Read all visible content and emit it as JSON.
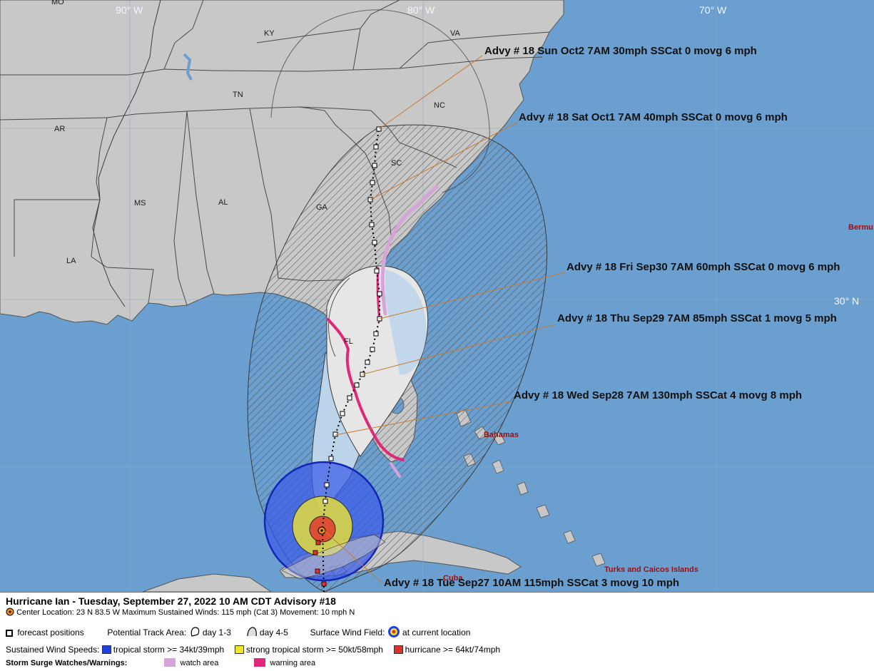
{
  "map": {
    "longitude_labels": [
      "90° W",
      "80° W",
      "70° W"
    ],
    "latitude_labels": [
      "30° N"
    ],
    "corner_label": "MO",
    "state_labels": [
      "KY",
      "VA",
      "TN",
      "NC",
      "AR",
      "SC",
      "GA",
      "MS",
      "AL",
      "LA",
      "FL"
    ],
    "country_labels": [
      "Bermu",
      "Bahamas",
      "Cuba",
      "Turks and Caicos Islands"
    ],
    "advisories": [
      "Advy # 18 Sun Oct2 7AM  30mph SSCat 0 movg 6 mph",
      "Advy # 18 Sat Oct1 7AM  40mph SSCat 0 movg 6 mph",
      "Advy # 18 Fri Sep30 7AM  60mph SSCat 0 movg 6 mph",
      "Advy # 18 Thu Sep29 7AM  85mph SSCat 1 movg 5 mph",
      "Advy # 18 Wed Sep28 7AM  130mph SSCat 4 movg 8 mph",
      "Advy # 18 Tue Sep27 10AM  115mph SSCat 3 movg 10 mph"
    ],
    "colors": {
      "ocean": "#6b9fcf",
      "land": "#c8c8c8",
      "cone_day13": "#e6e6e6",
      "cone_day45": "#bcd4ea",
      "tropical_storm": "#1f3fe0",
      "strong_tropical_storm": "#f0e62e",
      "hurricane": "#e0302a",
      "surge_watch": "#d7a4d9",
      "surge_warning": "#e0287a"
    }
  },
  "legend": {
    "title": "Hurricane Ian  -  Tuesday, September 27, 2022  10 AM CDT   Advisory #18",
    "center_text": "Center Location: 23 N  83.5 W   Maximum Sustained Winds: 115 mph (Cat 3) Movement: 10 mph N",
    "forecast_positions": "forecast positions",
    "potential_track_area": "Potential Track Area:",
    "day13": "day 1-3",
    "day45": "day 4-5",
    "surface_wind_field": "Surface Wind Field:",
    "current_location": "at current location",
    "sustained_wind_speeds": "Sustained Wind Speeds:",
    "tropical_storm": "tropical storm >= 34kt/39mph",
    "strong_tropical_storm": "strong tropical storm >= 50kt/58mph",
    "hurricane": "hurricane >= 64kt/74mph",
    "storm_surge": "Storm Surge Watches/Warnings:",
    "watch_area": "watch area",
    "warning_area": "warning area"
  }
}
